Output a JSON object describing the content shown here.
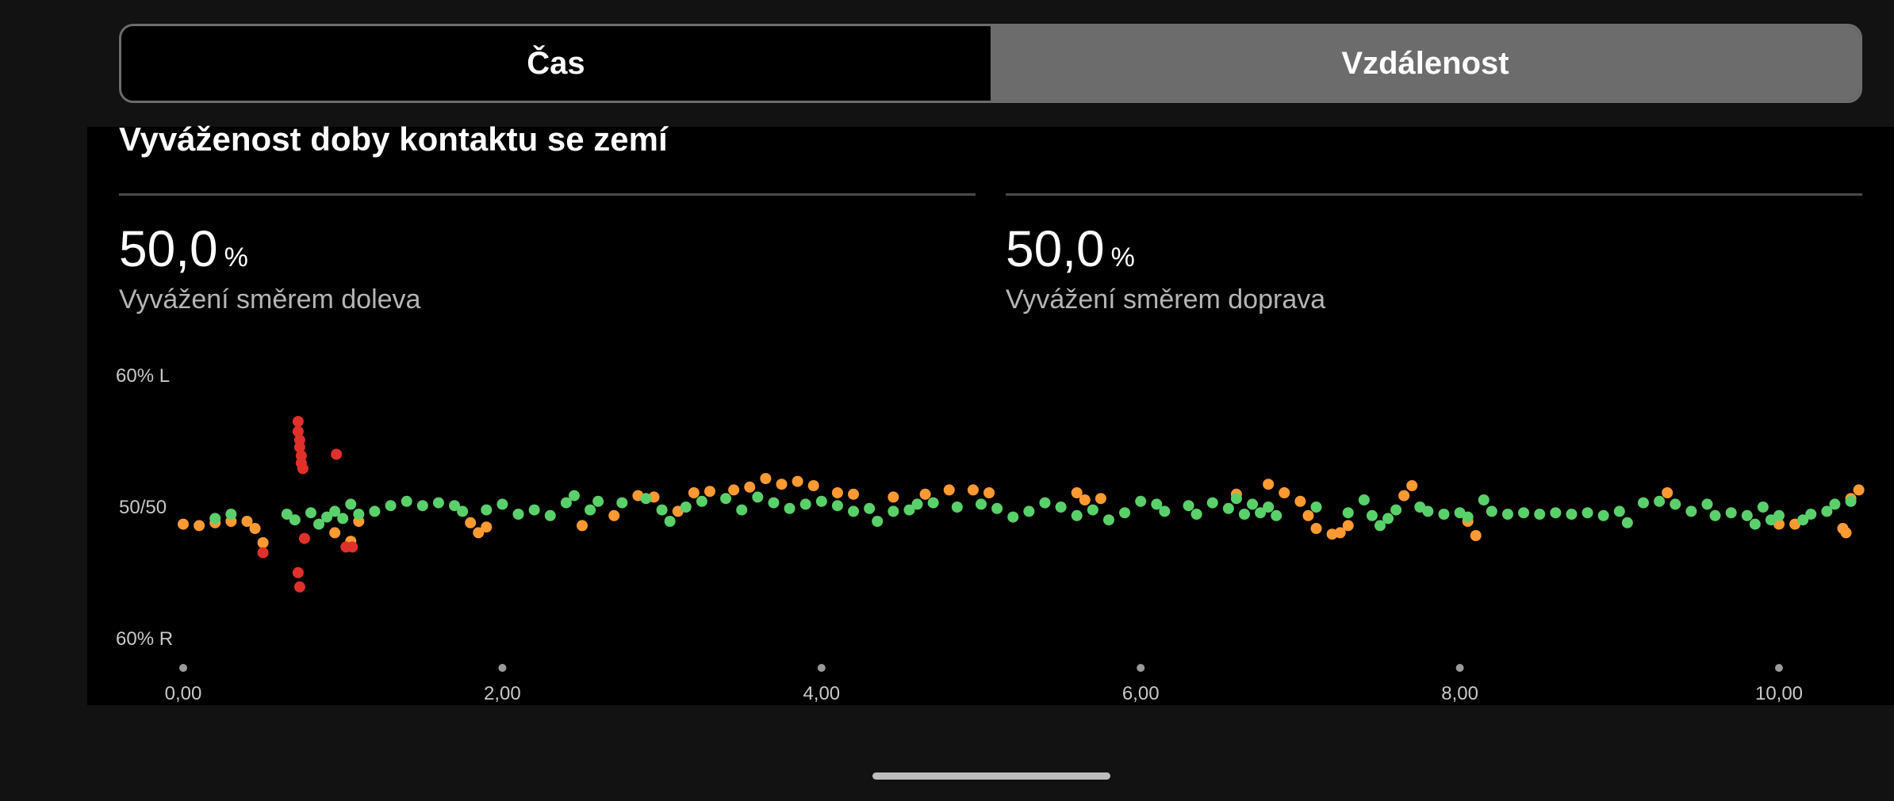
{
  "tabs": [
    {
      "label": "Čas",
      "active": false
    },
    {
      "label": "Vzdálenost",
      "active": true
    }
  ],
  "card": {
    "title": "Vyváženost doby kontaktu se zemí",
    "left": {
      "value": "50,0",
      "unit": "%",
      "label": "Vyvážení směrem doleva"
    },
    "right": {
      "value": "50,0",
      "unit": "%",
      "label": "Vyvážení směrem doprava"
    }
  },
  "colors": {
    "green": "#5ad06a",
    "orange": "#ff9a33",
    "red": "#e0302a",
    "background": "#000000"
  },
  "chart_data": {
    "type": "scatter",
    "ylabels": {
      "top": "60% L",
      "mid": "50/50",
      "bottom": "60% R"
    },
    "ylim": [
      -10,
      10
    ],
    "xlim": [
      0,
      10.5
    ],
    "xticks": [
      {
        "v": 0,
        "label": "0,00"
      },
      {
        "v": 2,
        "label": "2,00"
      },
      {
        "v": 4,
        "label": "4,00"
      },
      {
        "v": 6,
        "label": "6,00"
      },
      {
        "v": 8,
        "label": "8,00"
      },
      {
        "v": 10,
        "label": "10,00"
      }
    ],
    "series": [
      {
        "color": "orange",
        "points": [
          [
            0,
            -1.2
          ],
          [
            0.1,
            -1.3
          ],
          [
            0.2,
            -1.1
          ],
          [
            0.3,
            -1.0
          ],
          [
            0.4,
            -1.0
          ],
          [
            0.45,
            -1.5
          ],
          [
            0.5,
            -2.5
          ],
          [
            0.95,
            -1.8
          ],
          [
            1.05,
            -2.4
          ],
          [
            1.1,
            -1.0
          ],
          [
            1.8,
            -1.1
          ],
          [
            1.85,
            -1.8
          ],
          [
            1.9,
            -1.4
          ],
          [
            2.5,
            -1.3
          ],
          [
            2.7,
            -0.6
          ],
          [
            2.85,
            0.8
          ],
          [
            2.95,
            0.7
          ],
          [
            3.1,
            -0.3
          ],
          [
            3.2,
            1.0
          ],
          [
            3.3,
            1.1
          ],
          [
            3.45,
            1.2
          ],
          [
            3.55,
            1.4
          ],
          [
            3.65,
            2.0
          ],
          [
            3.75,
            1.6
          ],
          [
            3.85,
            1.8
          ],
          [
            3.95,
            1.5
          ],
          [
            4.1,
            1.0
          ],
          [
            4.2,
            0.9
          ],
          [
            4.45,
            0.7
          ],
          [
            4.65,
            0.9
          ],
          [
            4.8,
            1.2
          ],
          [
            4.95,
            1.2
          ],
          [
            5.05,
            1.0
          ],
          [
            5.6,
            1.0
          ],
          [
            5.65,
            0.5
          ],
          [
            5.75,
            0.6
          ],
          [
            6.6,
            0.9
          ],
          [
            6.8,
            1.6
          ],
          [
            6.9,
            1.0
          ],
          [
            7.0,
            0.4
          ],
          [
            7.05,
            -0.6
          ],
          [
            7.1,
            -1.5
          ],
          [
            7.2,
            -1.9
          ],
          [
            7.25,
            -1.8
          ],
          [
            7.3,
            -1.3
          ],
          [
            7.65,
            0.8
          ],
          [
            7.7,
            1.5
          ],
          [
            8.05,
            -1.0
          ],
          [
            8.1,
            -2.0
          ],
          [
            9.3,
            1.0
          ],
          [
            10.0,
            -1.2
          ],
          [
            10.1,
            -1.2
          ],
          [
            10.4,
            -1.5
          ],
          [
            10.42,
            -1.8
          ],
          [
            10.45,
            0.6
          ],
          [
            10.5,
            1.2
          ]
        ]
      },
      {
        "color": "green",
        "points": [
          [
            0.2,
            -0.8
          ],
          [
            0.3,
            -0.5
          ],
          [
            0.65,
            -0.5
          ],
          [
            0.7,
            -0.9
          ],
          [
            0.8,
            -0.4
          ],
          [
            0.85,
            -1.2
          ],
          [
            0.9,
            -0.7
          ],
          [
            0.95,
            -0.3
          ],
          [
            1.0,
            -0.8
          ],
          [
            1.05,
            0.2
          ],
          [
            1.1,
            -0.5
          ],
          [
            1.2,
            -0.3
          ],
          [
            1.3,
            0.1
          ],
          [
            1.4,
            0.4
          ],
          [
            1.5,
            0.1
          ],
          [
            1.6,
            0.3
          ],
          [
            1.7,
            0.1
          ],
          [
            1.75,
            -0.3
          ],
          [
            1.9,
            -0.2
          ],
          [
            2.0,
            0.2
          ],
          [
            2.1,
            -0.5
          ],
          [
            2.2,
            -0.2
          ],
          [
            2.3,
            -0.6
          ],
          [
            2.4,
            0.3
          ],
          [
            2.45,
            0.8
          ],
          [
            2.55,
            -0.2
          ],
          [
            2.6,
            0.4
          ],
          [
            2.75,
            0.3
          ],
          [
            2.9,
            0.6
          ],
          [
            3.0,
            -0.2
          ],
          [
            3.05,
            -1.0
          ],
          [
            3.15,
            0.0
          ],
          [
            3.25,
            0.4
          ],
          [
            3.4,
            0.6
          ],
          [
            3.5,
            -0.2
          ],
          [
            3.6,
            0.7
          ],
          [
            3.7,
            0.3
          ],
          [
            3.8,
            -0.1
          ],
          [
            3.9,
            0.2
          ],
          [
            4.0,
            0.4
          ],
          [
            4.1,
            0.1
          ],
          [
            4.2,
            -0.3
          ],
          [
            4.3,
            -0.1
          ],
          [
            4.35,
            -1.0
          ],
          [
            4.45,
            -0.3
          ],
          [
            4.55,
            -0.2
          ],
          [
            4.6,
            0.2
          ],
          [
            4.7,
            0.3
          ],
          [
            4.85,
            0.0
          ],
          [
            5.0,
            0.2
          ],
          [
            5.1,
            -0.1
          ],
          [
            5.2,
            -0.7
          ],
          [
            5.3,
            -0.3
          ],
          [
            5.4,
            0.3
          ],
          [
            5.5,
            0.0
          ],
          [
            5.6,
            -0.6
          ],
          [
            5.7,
            -0.2
          ],
          [
            5.8,
            -0.9
          ],
          [
            5.9,
            -0.4
          ],
          [
            6.0,
            0.4
          ],
          [
            6.1,
            0.2
          ],
          [
            6.15,
            -0.3
          ],
          [
            6.3,
            0.1
          ],
          [
            6.35,
            -0.5
          ],
          [
            6.45,
            0.3
          ],
          [
            6.55,
            -0.1
          ],
          [
            6.6,
            0.6
          ],
          [
            6.65,
            -0.5
          ],
          [
            6.7,
            0.2
          ],
          [
            6.75,
            -0.4
          ],
          [
            6.8,
            0.0
          ],
          [
            6.85,
            -0.6
          ],
          [
            7.1,
            0.0
          ],
          [
            7.3,
            -0.4
          ],
          [
            7.4,
            0.5
          ],
          [
            7.45,
            -0.6
          ],
          [
            7.5,
            -1.3
          ],
          [
            7.55,
            -0.8
          ],
          [
            7.6,
            -0.2
          ],
          [
            7.75,
            0.0
          ],
          [
            7.8,
            -0.3
          ],
          [
            7.9,
            -0.5
          ],
          [
            8.0,
            -0.4
          ],
          [
            8.05,
            -0.7
          ],
          [
            8.15,
            0.5
          ],
          [
            8.2,
            -0.3
          ],
          [
            8.3,
            -0.5
          ],
          [
            8.4,
            -0.4
          ],
          [
            8.5,
            -0.5
          ],
          [
            8.6,
            -0.4
          ],
          [
            8.7,
            -0.5
          ],
          [
            8.8,
            -0.4
          ],
          [
            8.9,
            -0.6
          ],
          [
            9.0,
            -0.3
          ],
          [
            9.05,
            -1.1
          ],
          [
            9.15,
            0.3
          ],
          [
            9.25,
            0.4
          ],
          [
            9.35,
            0.2
          ],
          [
            9.45,
            -0.3
          ],
          [
            9.55,
            0.2
          ],
          [
            9.6,
            -0.6
          ],
          [
            9.7,
            -0.4
          ],
          [
            9.8,
            -0.6
          ],
          [
            9.85,
            -1.2
          ],
          [
            9.9,
            0.0
          ],
          [
            9.95,
            -0.9
          ],
          [
            10.0,
            -0.6
          ],
          [
            10.15,
            -0.9
          ],
          [
            10.2,
            -0.5
          ],
          [
            10.3,
            -0.3
          ],
          [
            10.35,
            0.2
          ],
          [
            10.45,
            0.4
          ]
        ]
      },
      {
        "color": "red",
        "points": [
          [
            0.5,
            -3.2
          ],
          [
            0.72,
            6.0
          ],
          [
            0.72,
            5.3
          ],
          [
            0.73,
            4.7
          ],
          [
            0.73,
            4.2
          ],
          [
            0.74,
            3.6
          ],
          [
            0.74,
            3.1
          ],
          [
            0.75,
            2.7
          ],
          [
            0.76,
            -2.2
          ],
          [
            0.72,
            -4.6
          ],
          [
            0.73,
            -5.6
          ],
          [
            0.96,
            3.7
          ],
          [
            1.02,
            -2.8
          ],
          [
            1.06,
            -2.8
          ]
        ]
      }
    ]
  }
}
